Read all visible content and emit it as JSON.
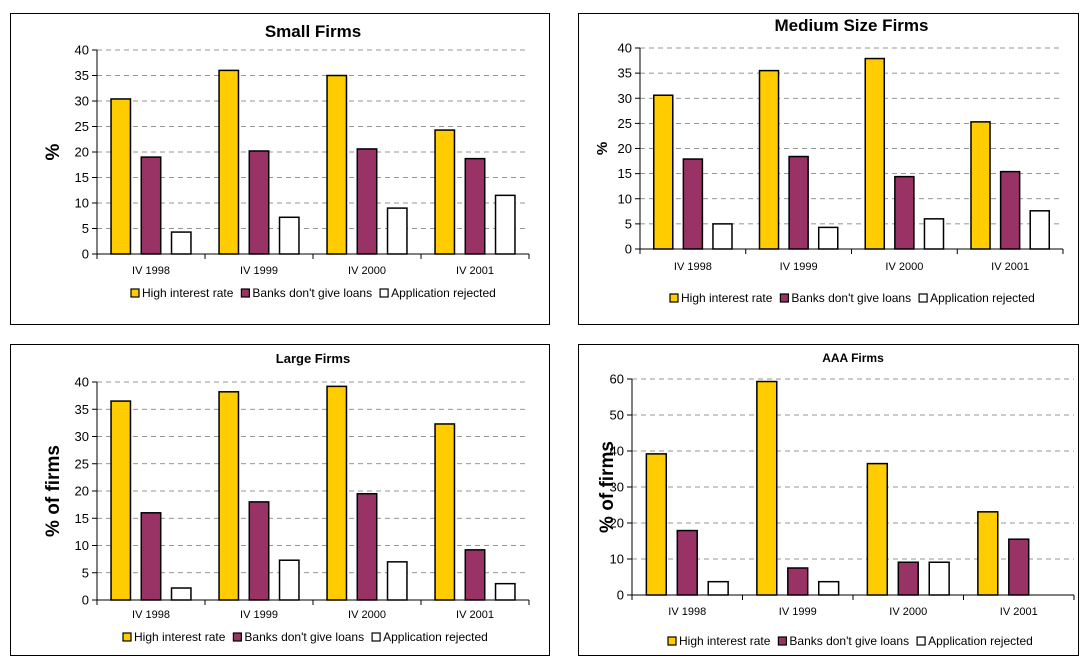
{
  "chart_data": [
    {
      "type": "bar",
      "title": "Small Firms",
      "ylabel": "%",
      "xlabel": "",
      "ylim": [
        0,
        40
      ],
      "ytick_step": 5,
      "categories": [
        "IV 1998",
        "IV 1999",
        "IV 2000",
        "IV 2001"
      ],
      "series": [
        {
          "name": "High interest rate",
          "color": "#FFCC00",
          "values": [
            30.4,
            36.0,
            35.0,
            24.3
          ]
        },
        {
          "name": "Banks don't give loans",
          "color": "#993366",
          "values": [
            19.0,
            20.2,
            20.6,
            18.7
          ]
        },
        {
          "name": "Application rejected",
          "color": "#FFFFFF",
          "values": [
            4.3,
            7.2,
            9.0,
            11.5
          ]
        }
      ],
      "grid": true,
      "legend": "bottom"
    },
    {
      "type": "bar",
      "title": "Medium Size Firms",
      "ylabel": "%",
      "xlabel": "",
      "ylim": [
        0,
        40
      ],
      "ytick_step": 5,
      "categories": [
        "IV 1998",
        "IV 1999",
        "IV 2000",
        "IV 2001"
      ],
      "series": [
        {
          "name": "High interest rate",
          "color": "#FFCC00",
          "values": [
            30.6,
            35.5,
            37.9,
            25.3
          ]
        },
        {
          "name": "Banks don't give loans",
          "color": "#993366",
          "values": [
            17.9,
            18.4,
            14.4,
            15.4
          ]
        },
        {
          "name": "Application rejected",
          "color": "#FFFFFF",
          "values": [
            5.0,
            4.3,
            6.0,
            7.6
          ]
        }
      ],
      "grid": true,
      "legend": "bottom"
    },
    {
      "type": "bar",
      "title": "Large Firms",
      "ylabel": "% of firms",
      "xlabel": "",
      "ylim": [
        0,
        40
      ],
      "ytick_step": 5,
      "categories": [
        "IV 1998",
        "IV 1999",
        "IV 2000",
        "IV 2001"
      ],
      "series": [
        {
          "name": "High interest rate",
          "color": "#FFCC00",
          "values": [
            36.5,
            38.2,
            39.2,
            32.3
          ]
        },
        {
          "name": "Banks don't give loans",
          "color": "#993366",
          "values": [
            16.0,
            18.0,
            19.5,
            9.2
          ]
        },
        {
          "name": "Application rejected",
          "color": "#FFFFFF",
          "values": [
            2.2,
            7.3,
            7.0,
            3.0
          ]
        }
      ],
      "grid": true,
      "legend": "bottom"
    },
    {
      "type": "bar",
      "title": "AAA Firms",
      "ylabel": "% of firms",
      "xlabel": "",
      "ylim": [
        0,
        60
      ],
      "ytick_step": 10,
      "categories": [
        "IV 1998",
        "IV 1999",
        "IV 2000",
        "IV 2001"
      ],
      "series": [
        {
          "name": "High interest rate",
          "color": "#FFCC00",
          "values": [
            39.2,
            59.3,
            36.5,
            23.1
          ]
        },
        {
          "name": "Banks don't give loans",
          "color": "#993366",
          "values": [
            17.9,
            7.5,
            9.1,
            15.5
          ]
        },
        {
          "name": "Application rejected",
          "color": "#FFFFFF",
          "values": [
            3.7,
            3.7,
            9.1,
            0
          ]
        }
      ],
      "grid": true,
      "legend": "bottom"
    }
  ]
}
